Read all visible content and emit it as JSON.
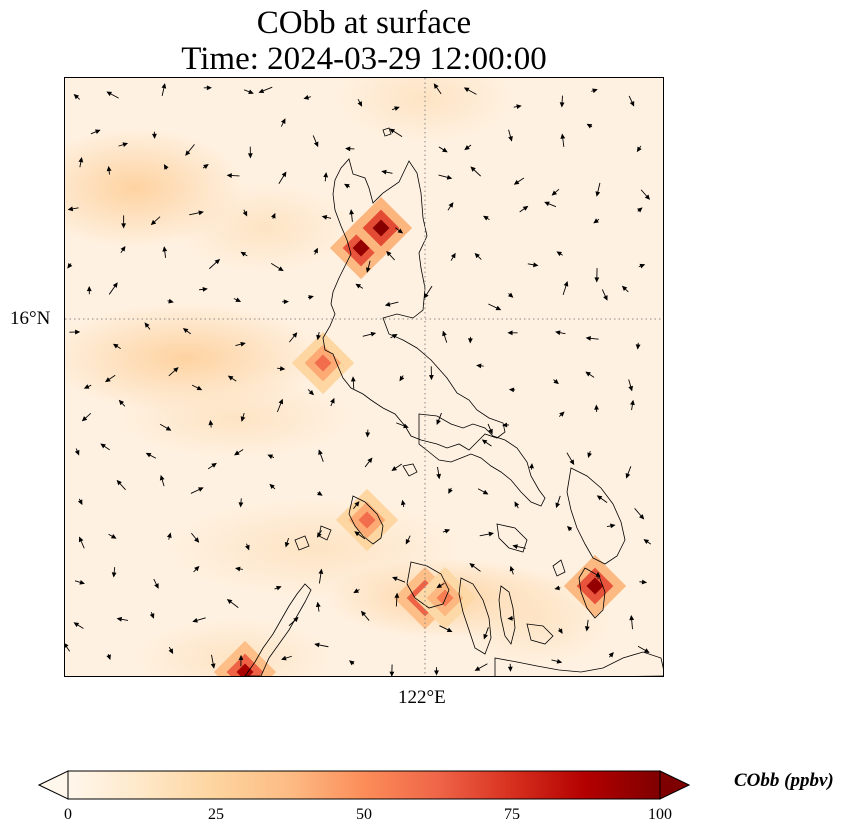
{
  "title": {
    "line1": "CObb at surface",
    "line2": "Time: 2024-03-29 12:00:00"
  },
  "axes": {
    "lat_label": "16°N",
    "lon_label": "122°E"
  },
  "colorbar": {
    "label": "CObb (ppbv)",
    "ticks": [
      "0",
      "25",
      "50",
      "75",
      "100"
    ],
    "min": 0,
    "max": 100,
    "extend": "both",
    "colormap": [
      "#fff7ec",
      "#fee8c8",
      "#fdd49e",
      "#fdbb84",
      "#fc8d59",
      "#ef6548",
      "#d7301f",
      "#b30000",
      "#7f0000"
    ]
  },
  "map": {
    "background_color": "#fff1e1",
    "hotspots_ppbv": [
      95,
      60,
      60,
      90,
      95,
      98,
      90,
      55
    ]
  }
}
